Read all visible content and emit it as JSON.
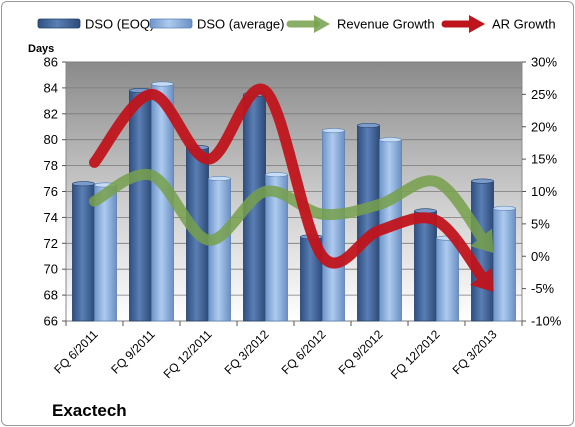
{
  "chart_data": {
    "type": "bar",
    "title": "Exactech",
    "ylabel": "Days",
    "categories": [
      "FQ 6/2011",
      "FQ 9/2011",
      "FQ 12/2011",
      "FQ 3/2012",
      "FQ 6/2012",
      "FQ 9/2012",
      "FQ 12/2012",
      "FQ 3/2013"
    ],
    "ylim": [
      66,
      86
    ],
    "y_ticks": [
      "66",
      "68",
      "70",
      "72",
      "74",
      "76",
      "78",
      "80",
      "82",
      "84",
      "86"
    ],
    "y2lim": [
      -10,
      30
    ],
    "y2_ticks": [
      "-10%",
      "-5%",
      "0%",
      "5%",
      "10%",
      "15%",
      "20%",
      "25%",
      "30%"
    ],
    "series": [
      {
        "name": "DSO (EOQ)",
        "kind": "bar",
        "color": "#4a6fa5",
        "values": [
          76.6,
          83.8,
          79.4,
          83.5,
          72.5,
          81.1,
          74.5,
          76.8
        ]
      },
      {
        "name": "DSO (average)",
        "kind": "bar",
        "color": "#8db3e2",
        "values": [
          76.5,
          84.3,
          77.0,
          77.3,
          80.7,
          80.0,
          72.4,
          74.7
        ]
      },
      {
        "name": "Revenue Growth",
        "kind": "line",
        "axis": "right",
        "color": "#77a04b",
        "values": [
          8.5,
          12.5,
          2.5,
          10.0,
          6.5,
          8.0,
          11.5,
          0.5
        ]
      },
      {
        "name": "AR Growth",
        "kind": "line",
        "axis": "right",
        "color": "#c0141c",
        "values": [
          14.5,
          25.0,
          15.0,
          25.5,
          0.0,
          4.0,
          5.5,
          -5.5
        ]
      }
    ],
    "grid": true,
    "legend_position": "top"
  }
}
